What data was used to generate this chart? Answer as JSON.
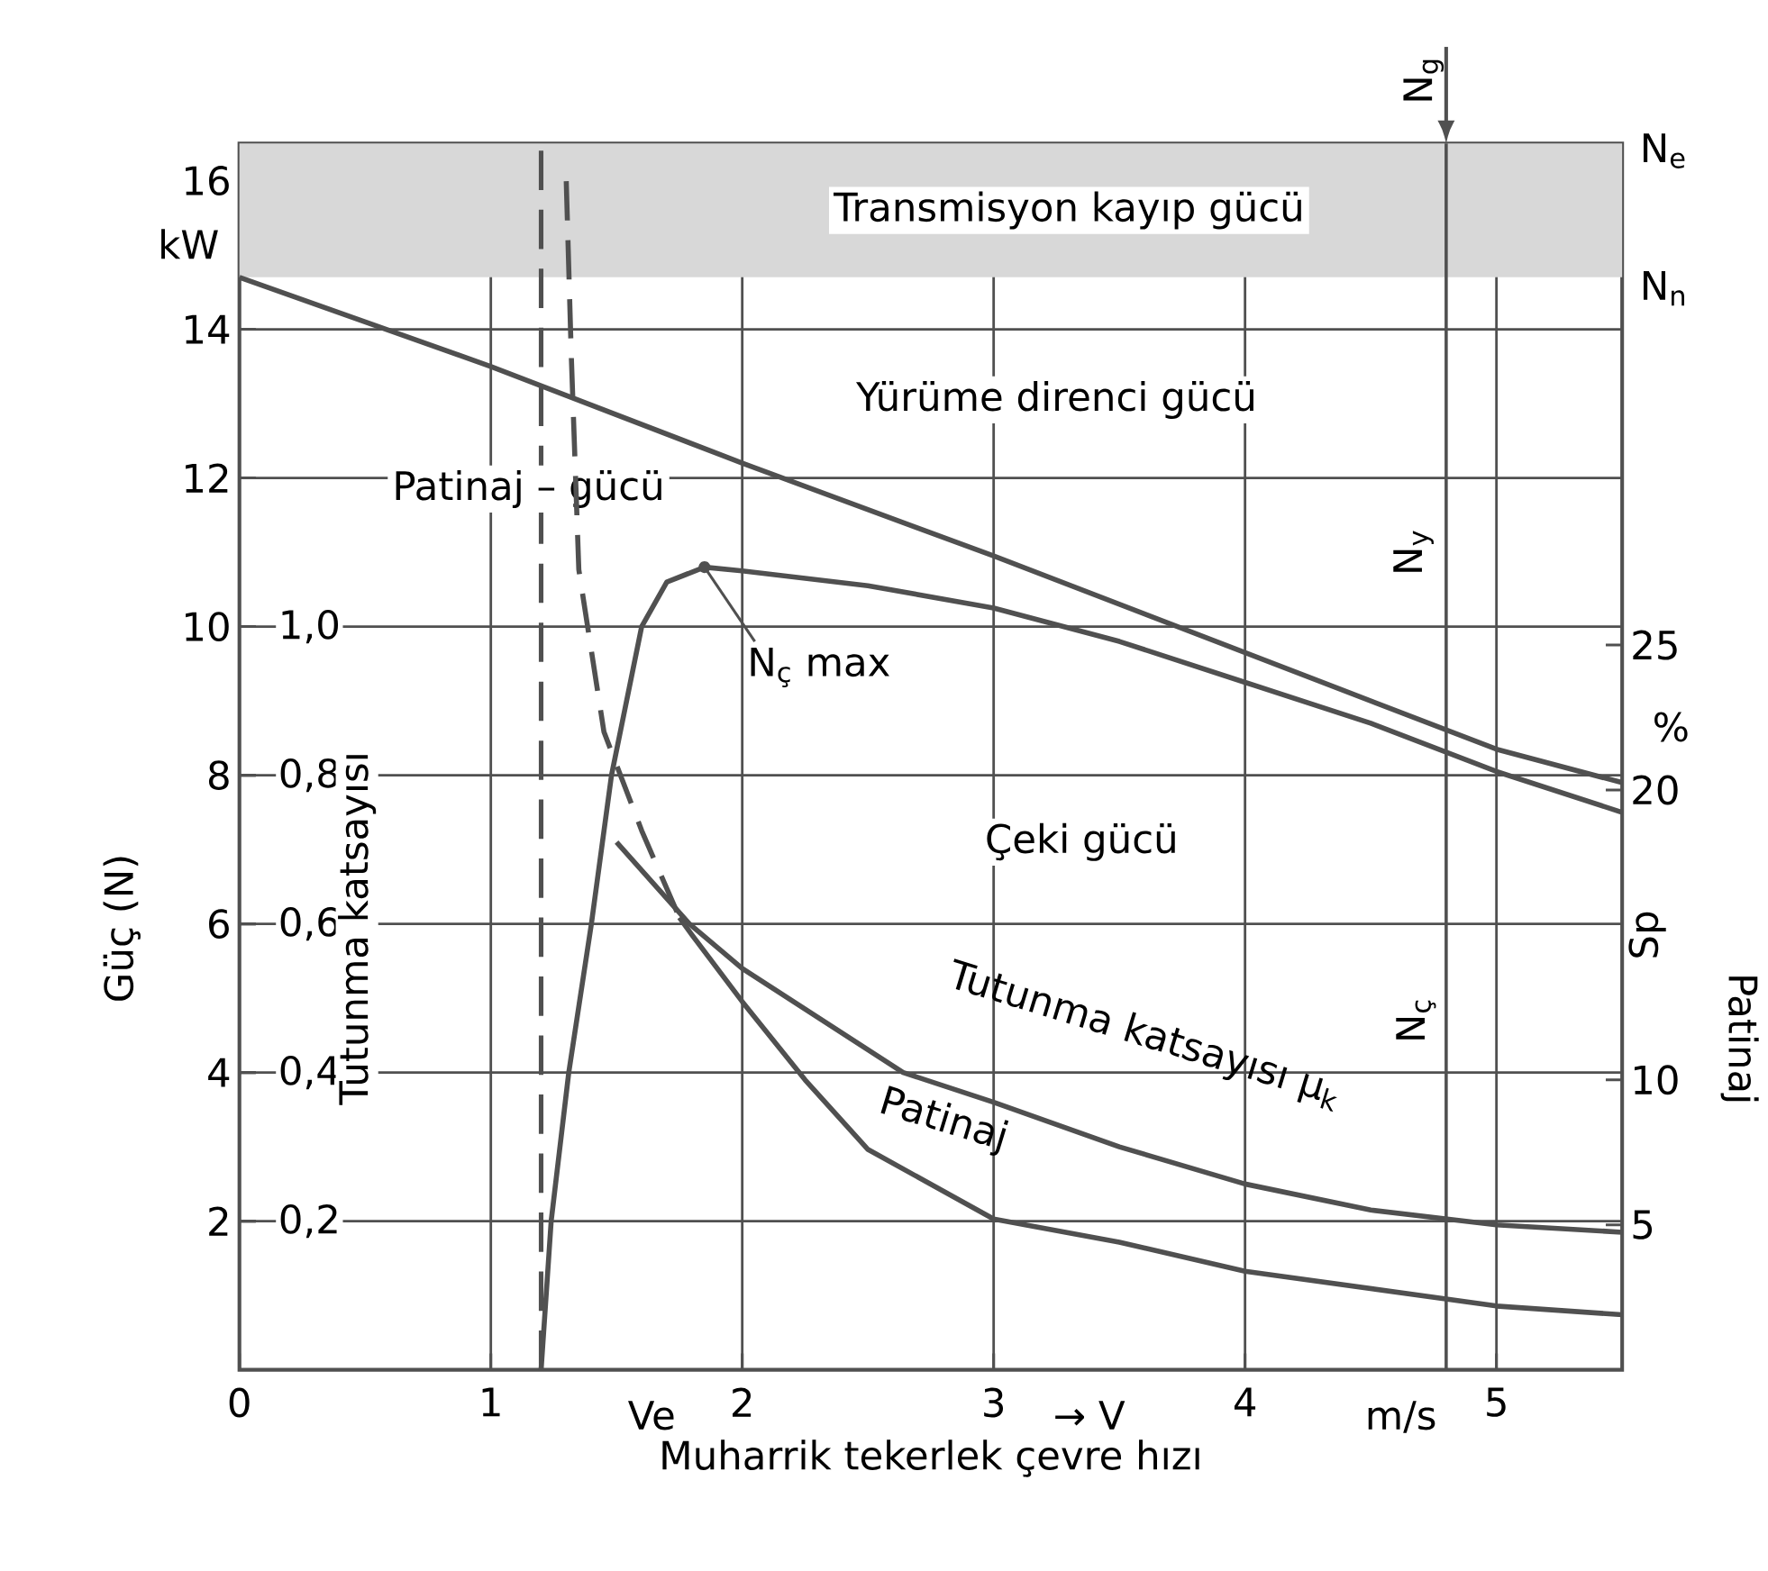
{
  "chart_data": {
    "type": "line",
    "xlabel": "Muharrik tekerlek çevre hızı",
    "ylabel": "Güç (N)",
    "y2label": "Tutunma katsayısı",
    "y3label": "Patinaj",
    "xlim": [
      0,
      5.5
    ],
    "ylim": [
      0,
      16.5
    ],
    "y2lim": [
      0,
      1.65
    ],
    "y3lim": [
      0,
      42.3
    ],
    "xticks": [
      0,
      1,
      2,
      3,
      4,
      5
    ],
    "yticks": [
      2,
      4,
      6,
      8,
      10,
      12,
      14,
      16
    ],
    "y2ticks": [
      {
        "value": 0.2,
        "label": "0,2"
      },
      {
        "value": 0.4,
        "label": "0,4"
      },
      {
        "value": 0.6,
        "label": "0,6"
      },
      {
        "value": 0.8,
        "label": "0,8"
      },
      {
        "value": 1.0,
        "label": "1,0"
      }
    ],
    "y3ticks": [
      5,
      10,
      20,
      25
    ],
    "grid": true,
    "series": [
      {
        "type": "line",
        "axis": "y",
        "color": "#505050",
        "line_style": "solid",
        "x": [
          0,
          1,
          2,
          3,
          4,
          5,
          5.5
        ],
        "values": [
          14.7,
          13.5,
          12.2,
          10.95,
          9.65,
          8.35,
          7.9
        ]
      },
      {
        "type": "line",
        "axis": "y",
        "color": "#505050",
        "line_style": "solid",
        "x": [
          1.2,
          1.24,
          1.31,
          1.4,
          1.48,
          1.6,
          1.7,
          1.85,
          2,
          2.5,
          3,
          3.5,
          4,
          4.5,
          5,
          5.5
        ],
        "values": [
          0,
          2,
          4,
          6,
          8,
          10,
          10.6,
          10.8,
          10.75,
          10.55,
          10.25,
          9.8,
          9.25,
          8.7,
          8.05,
          7.5
        ]
      },
      {
        "type": "line",
        "axis": "y2",
        "color": "#505050",
        "line_style": "solid",
        "x": [
          1.5,
          1.79,
          2,
          2.64,
          3,
          3.5,
          4,
          4.5,
          5,
          5.5
        ],
        "values": [
          0.71,
          0.6,
          0.54,
          0.4,
          0.36,
          0.3,
          0.25,
          0.215,
          0.195,
          0.185
        ]
      },
      {
        "type": "line",
        "axis": "y3",
        "color": "#505050",
        "line_style": "dashed",
        "x": [
          1.3,
          1.32,
          1.35,
          1.45,
          1.6,
          1.75
        ],
        "values": [
          41,
          35,
          27.6,
          22,
          18.6,
          15.6
        ]
      },
      {
        "type": "line",
        "axis": "y3",
        "color": "#505050",
        "line_style": "solid",
        "x": [
          1.75,
          1.8,
          2,
          2.25,
          2.5,
          3,
          3.5,
          4,
          5,
          5.5
        ],
        "values": [
          15.6,
          15,
          12.7,
          10,
          7.6,
          5.2,
          4.4,
          3.4,
          2.2,
          1.9
        ]
      }
    ],
    "bands": [
      {
        "axis": "y",
        "from": 14.7,
        "to": 16.5,
        "label": "Transmisyon kayıp gücü",
        "color": "#d8d8d8"
      }
    ],
    "ref_lines": [
      {
        "axis": "x",
        "value": 4.8,
        "label": "N$_{g}$",
        "color": "#505050",
        "line_style": "solid"
      },
      {
        "axis": "x",
        "value": 1.2,
        "color": "#505050",
        "line_style": "dashed"
      }
    ],
    "annotations": [
      "kW",
      "Yürüme direnci gücü",
      "Patinaj – gücü",
      "Çeki gücü",
      "Tutunma katsayısı μ$_{k}$",
      "Patinaj",
      "N$_{e}$",
      "N$_{n}$",
      "N$_{y}$",
      "N$_{ç}$",
      "Ve",
      "→ V",
      "m/s",
      "%",
      "Sp",
      {
        "text": "N$_{ç}$ max",
        "x": 1.85,
        "y": 10.8
      }
    ]
  }
}
